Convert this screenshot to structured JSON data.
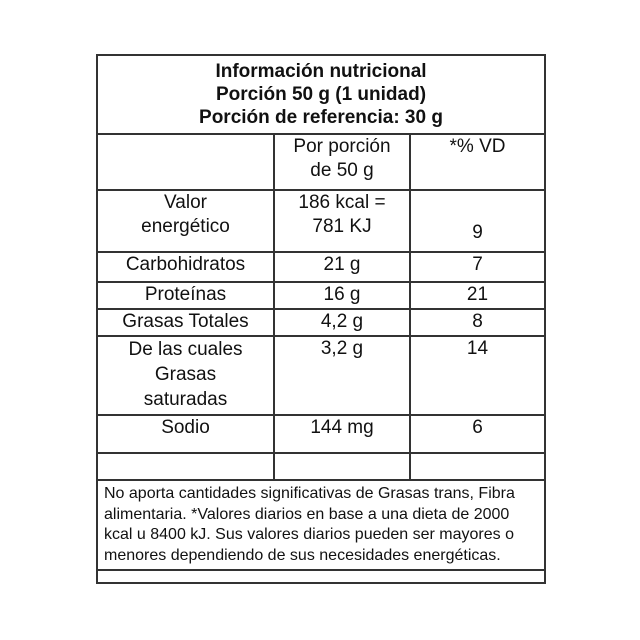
{
  "header": {
    "title": "Información nutricional",
    "serving": "Porción 50 g (1 unidad)",
    "reference": "Porción de referencia: 30 g"
  },
  "columns": {
    "per_serving_line1": "Por porción",
    "per_serving_line2": "de 50 g",
    "dv": "*% VD"
  },
  "rows": [
    {
      "name_line1": "Valor",
      "name_line2": "energético",
      "amount_line1": "186 kcal =",
      "amount_line2": "781 KJ",
      "dv": "9"
    },
    {
      "name": "Carbohidratos",
      "amount": "21 g",
      "dv": "7"
    },
    {
      "name": "Proteínas",
      "amount": "16 g",
      "dv": "21"
    },
    {
      "name": "Grasas Totales",
      "amount": "4,2 g",
      "dv": "8"
    },
    {
      "name_line1": "De las cuales",
      "name_line2": "Grasas",
      "name_line3": "saturadas",
      "amount": "3,2 g",
      "dv": "14"
    },
    {
      "name": "Sodio",
      "amount": "144 mg",
      "dv": "6"
    }
  ],
  "footer": "No aporta cantidades significativas de Grasas trans, Fibra alimentaria. *Valores diarios en base a una dieta de 2000 kcal u 8400 kJ. Sus valores diarios pueden ser mayores o menores dependiendo de sus necesidades energéticas."
}
